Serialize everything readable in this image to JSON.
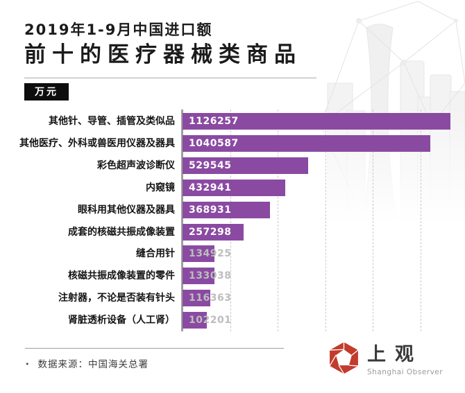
{
  "title": {
    "line1": "2019年1-9月中国进口额",
    "line2": "前十的医疗器械类商品"
  },
  "unit_badge": "万元",
  "chart_data": {
    "type": "bar",
    "orientation": "horizontal",
    "title": "2019年1-9月中国进口额前十的医疗器械类商品",
    "unit": "万元",
    "categories": [
      "其他针、导管、插管及类似品",
      "其他医疗、外科或兽医用仪器及器具",
      "彩色超声波诊断仪",
      "内窥镜",
      "眼科用其他仪器及器具",
      "成套的核磁共振成像装置",
      "缝合用针",
      "核磁共振成像装置的零件",
      "注射器，不论是否装有针头",
      "肾脏透析设备（人工肾）"
    ],
    "values": [
      1126257,
      1040587,
      529545,
      432941,
      368931,
      257298,
      134925,
      133038,
      116363,
      102201
    ],
    "xlim": [
      0,
      1150000
    ],
    "gridline_values": [
      200000,
      400000,
      600000,
      800000,
      1000000
    ],
    "grid": "dashed-vertical",
    "legend": "none",
    "bar_color": "#8a4aa2",
    "value_label_color_inside": "#ffffff",
    "value_label_color_short_bar": "#bdbdbd"
  },
  "footer": {
    "bullet": "•",
    "source": "数据来源：中国海关总署"
  },
  "logo": {
    "name": "上观",
    "subtitle": "Shanghai Observer",
    "accent_color": "#c23b2d"
  }
}
